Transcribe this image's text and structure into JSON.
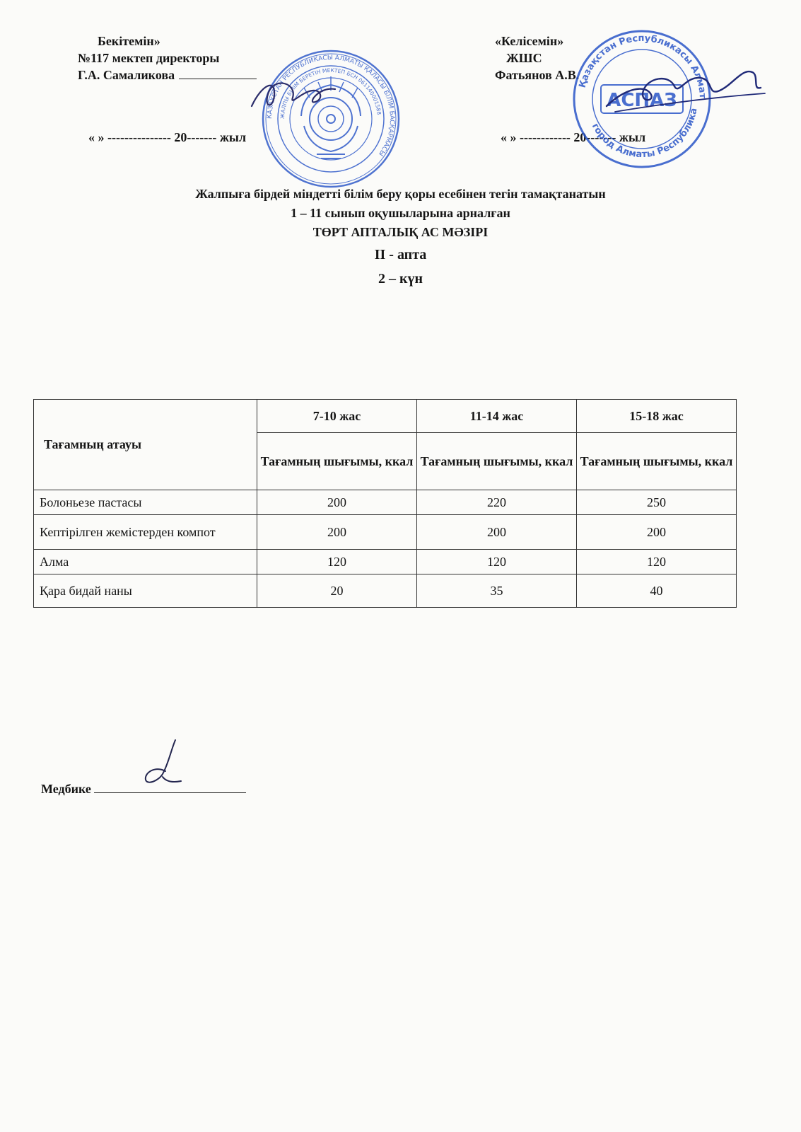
{
  "approval_left": {
    "line1": "Бекітемін»",
    "line2": "№117 мектеп  директоры",
    "line3": "Г.А. Самаликова",
    "date": "«     » --------------- 20------- жыл"
  },
  "approval_right": {
    "line1": "«Келісемін»",
    "line2": "ЖШС",
    "line3": "Фатьянов А.В.",
    "date": "«       » ------------ 20------- жыл"
  },
  "stamp_left": {
    "outer_text": "КАЗАХСТАН РЕСПУБЛИКАСЫ АЛМАТЫ ҚАЛАСЫ БІЛІМ БАСҚАРМАСЫ",
    "inner_text": "ЖАЛПЫ БІЛІМ БЕРЕТІН МЕКТЕП БСН 061140001588"
  },
  "stamp_right": {
    "outer_top": "Қазақстан Республикасы Алматы қаласы",
    "outer_bottom": "город Алматы Республика Казахстан",
    "logo": "АСПАЗ"
  },
  "titles": {
    "t1": "Жалпыға бірдей міндетті білім беру қоры есебінен тегін тамақтанатын",
    "t2": "1 – 11 сынып оқушыларына арналған",
    "t3": "ТӨРТ АПТАЛЫҚ АС МӘЗІРІ",
    "t4": "II - апта",
    "t5": "2 – күн"
  },
  "table": {
    "col_name": "Тағамның атауы",
    "ages": [
      "7-10 жас",
      "11-14 жас",
      "15-18 жас"
    ],
    "kcal_header": "Тағамның шығымы, ккал",
    "rows": [
      {
        "name": "Болоньезе пастасы",
        "v": [
          "200",
          "220",
          "250"
        ]
      },
      {
        "name": "Кептірілген жемістерден компот",
        "v": [
          "200",
          "200",
          "200"
        ]
      },
      {
        "name": "Алма",
        "v": [
          "120",
          "120",
          "120"
        ]
      },
      {
        "name": "Қара бидай наны",
        "v": [
          "20",
          "35",
          "40"
        ]
      }
    ]
  },
  "nurse": {
    "label": "Медбике"
  },
  "colors": {
    "stamp_blue": "#2a56c8",
    "ink": "#151515"
  }
}
